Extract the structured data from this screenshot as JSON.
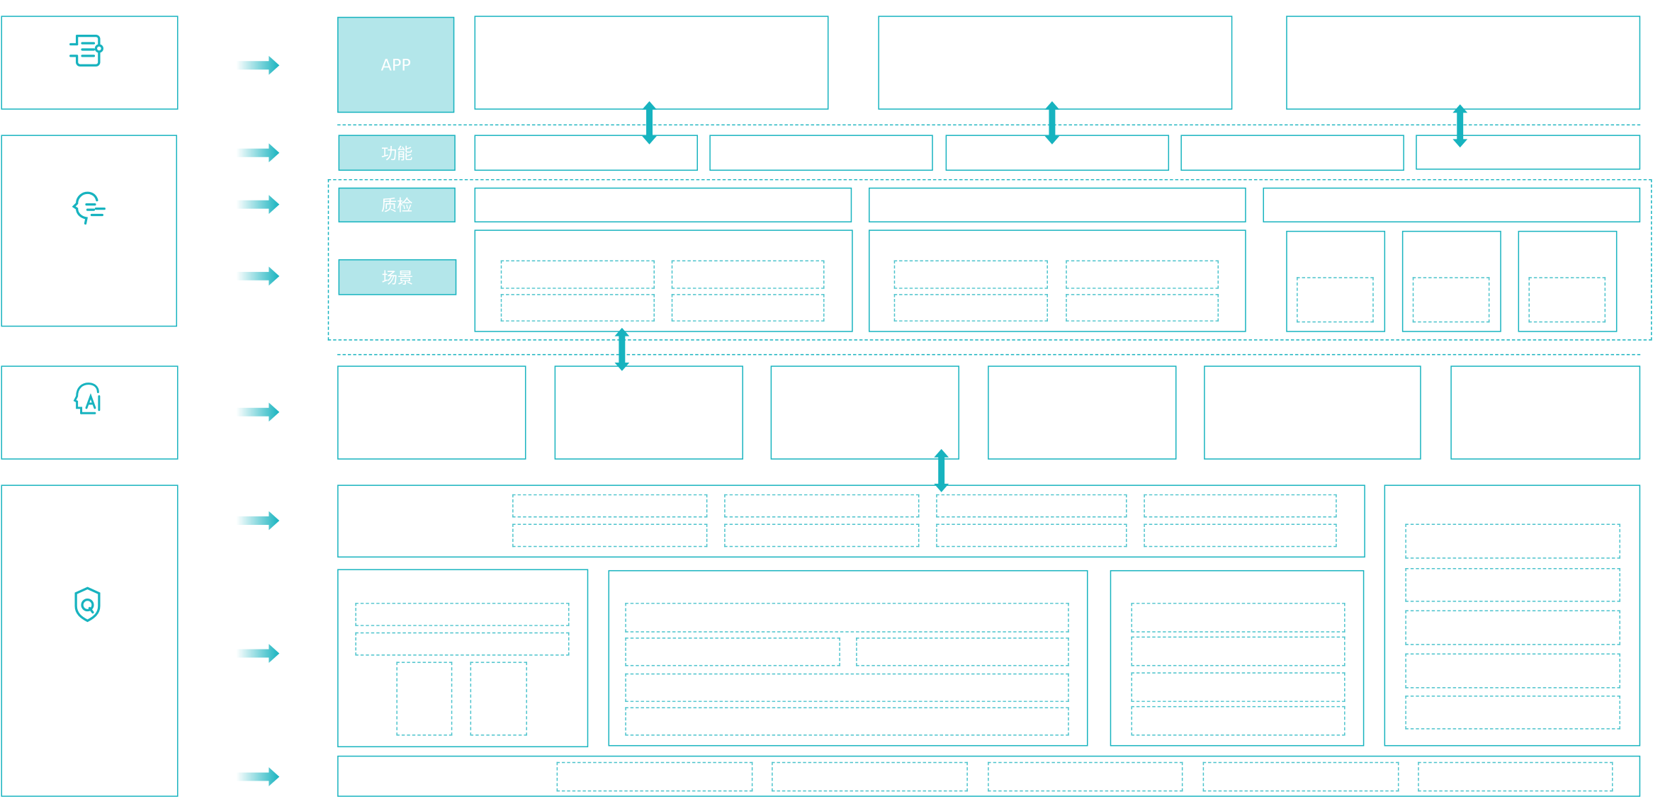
{
  "labels": {
    "app": "APP",
    "function": "功能",
    "quality": "质检",
    "scene": "场景"
  },
  "icons": [
    "list-settings-icon",
    "head-speech-icon",
    "head-ai-icon",
    "shield-q-icon"
  ],
  "colors": {
    "accent": "#17b3bf",
    "label_fill": "#b3e6ea",
    "dotted": "#4cc3cc"
  }
}
